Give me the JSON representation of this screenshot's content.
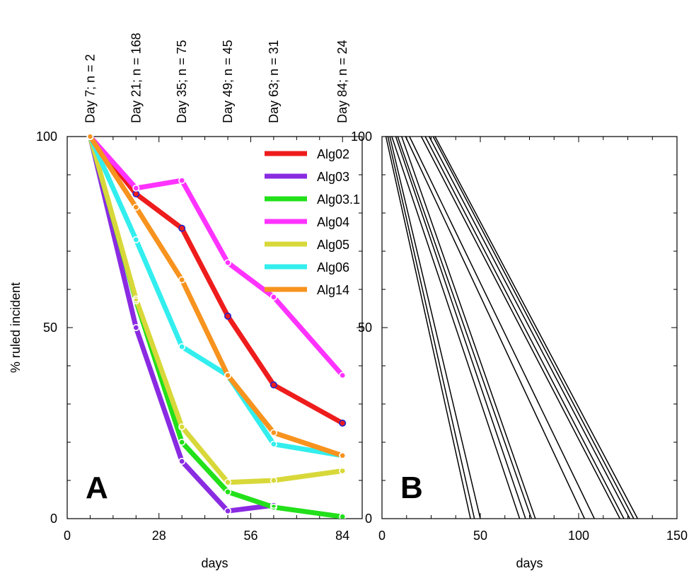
{
  "chart_data": [
    {
      "type": "line",
      "panel_label": "A",
      "xlabel": "days",
      "ylabel": "% ruled incident",
      "xlim": [
        0,
        90
      ],
      "ylim": [
        0,
        100
      ],
      "xticks": [
        0,
        28,
        56,
        84
      ],
      "yticks": [
        0,
        50,
        100
      ],
      "top_labels": [
        {
          "x": 7,
          "text": "Day 7; n = 2"
        },
        {
          "x": 21,
          "text": "Day 21; n = 168"
        },
        {
          "x": 35,
          "text": "Day 35; n = 75"
        },
        {
          "x": 49,
          "text": "Day 49; n = 45"
        },
        {
          "x": 63,
          "text": "Day 63; n = 31"
        },
        {
          "x": 84,
          "text": "Day 84; n = 24"
        }
      ],
      "legend_position": "top-right",
      "series": [
        {
          "name": "Alg02",
          "color": "#ee1c1c",
          "marker_color": "#2222cc",
          "x": [
            7,
            21,
            35,
            49,
            63,
            84
          ],
          "y": [
            100,
            85,
            76,
            53,
            35,
            25
          ]
        },
        {
          "name": "Alg03",
          "color": "#8a2be2",
          "marker_color": "#ffffff",
          "x": [
            7,
            21,
            35,
            49,
            63
          ],
          "y": [
            100,
            50,
            15,
            2,
            3.5
          ]
        },
        {
          "name": "Alg03.1",
          "color": "#22e01a",
          "marker_color": "#ffffff",
          "x": [
            7,
            21,
            35,
            49,
            63,
            84
          ],
          "y": [
            100,
            57,
            20,
            7,
            3,
            0.5
          ]
        },
        {
          "name": "Alg04",
          "color": "#ff33ff",
          "marker_color": "#ffffff",
          "x": [
            7,
            21,
            35,
            49,
            63,
            84
          ],
          "y": [
            100,
            86.5,
            88.5,
            67,
            58,
            37.5
          ]
        },
        {
          "name": "Alg05",
          "color": "#d8d83a",
          "marker_color": "#ffffff",
          "x": [
            7,
            21,
            35,
            49,
            63,
            84
          ],
          "y": [
            100,
            57.5,
            24,
            9.5,
            10,
            12.5
          ]
        },
        {
          "name": "Alg06",
          "color": "#33eeee",
          "marker_color": "#ffffff",
          "x": [
            7,
            21,
            35,
            49,
            63,
            84
          ],
          "y": [
            100,
            73,
            45,
            37.5,
            19.5,
            16.5
          ]
        },
        {
          "name": "Alg14",
          "color": "#f7931e",
          "marker_color": "#ffffff",
          "x": [
            7,
            21,
            35,
            49,
            63,
            84
          ],
          "y": [
            100,
            81.5,
            62.5,
            37.5,
            22.5,
            16.5
          ]
        }
      ]
    },
    {
      "type": "line",
      "panel_label": "B",
      "xlabel": "days",
      "ylabel": "",
      "xlim": [
        0,
        150
      ],
      "ylim": [
        0,
        100
      ],
      "xticks": [
        0,
        50,
        100,
        150
      ],
      "yticks": [
        0,
        50,
        100
      ],
      "series": [
        {
          "color": "#000000",
          "x": [
            2,
            45
          ],
          "y": [
            100,
            0
          ]
        },
        {
          "color": "#000000",
          "x": [
            3,
            47
          ],
          "y": [
            100,
            0
          ]
        },
        {
          "color": "#000000",
          "x": [
            4,
            50
          ],
          "y": [
            100,
            0
          ]
        },
        {
          "color": "#000000",
          "x": [
            5,
            70
          ],
          "y": [
            100,
            0
          ]
        },
        {
          "color": "#000000",
          "x": [
            7,
            73
          ],
          "y": [
            100,
            0
          ]
        },
        {
          "color": "#000000",
          "x": [
            8,
            76
          ],
          "y": [
            100,
            0
          ]
        },
        {
          "color": "#000000",
          "x": [
            10,
            78
          ],
          "y": [
            100,
            0
          ]
        },
        {
          "color": "#000000",
          "x": [
            12,
            103
          ],
          "y": [
            100,
            0
          ]
        },
        {
          "color": "#000000",
          "x": [
            14,
            108
          ],
          "y": [
            100,
            0
          ]
        },
        {
          "color": "#000000",
          "x": [
            20,
            121
          ],
          "y": [
            100,
            0
          ]
        },
        {
          "color": "#000000",
          "x": [
            22,
            123
          ],
          "y": [
            100,
            0
          ]
        },
        {
          "color": "#000000",
          "x": [
            24,
            126
          ],
          "y": [
            100,
            0
          ]
        },
        {
          "color": "#000000",
          "x": [
            26,
            128
          ],
          "y": [
            100,
            0
          ]
        },
        {
          "color": "#000000",
          "x": [
            27,
            130
          ],
          "y": [
            100,
            0
          ]
        }
      ]
    }
  ]
}
